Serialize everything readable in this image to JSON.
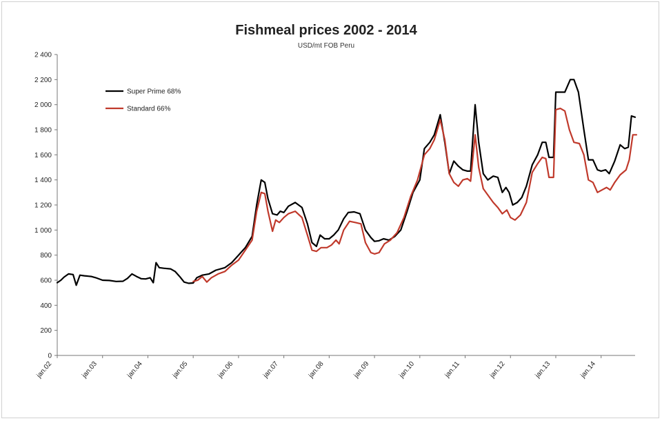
{
  "chart_data": {
    "type": "line",
    "title": "Fishmeal prices 2002 - 2014",
    "subtitle": "USD/mt FOB Peru",
    "xlabel": "",
    "ylabel": "",
    "ylim": [
      0,
      2400
    ],
    "yticks": [
      "0",
      "200",
      "400",
      "600",
      "800",
      "1 000",
      "1 200",
      "1 400",
      "1 600",
      "1 800",
      "2 000",
      "2 200",
      "2 400"
    ],
    "xticks": [
      "jan.02",
      "jan.03",
      "jan.04",
      "jan.05",
      "jan.06",
      "jan.07",
      "jan.08",
      "jan.09",
      "jan.10",
      "jan.11",
      "jan.12",
      "jan.13",
      "jan.14"
    ],
    "grid": false,
    "legend_position": "top-left",
    "series": [
      {
        "name": "Super Prime 68%",
        "color": "#000000",
        "points": [
          [
            2002.0,
            580
          ],
          [
            2002.08,
            600
          ],
          [
            2002.15,
            625
          ],
          [
            2002.25,
            650
          ],
          [
            2002.35,
            645
          ],
          [
            2002.42,
            560
          ],
          [
            2002.5,
            640
          ],
          [
            2002.6,
            635
          ],
          [
            2002.75,
            630
          ],
          [
            2002.85,
            620
          ],
          [
            2003.0,
            600
          ],
          [
            2003.15,
            598
          ],
          [
            2003.3,
            590
          ],
          [
            2003.45,
            592
          ],
          [
            2003.55,
            615
          ],
          [
            2003.65,
            650
          ],
          [
            2003.75,
            630
          ],
          [
            2003.85,
            612
          ],
          [
            2003.95,
            610
          ],
          [
            2004.05,
            620
          ],
          [
            2004.12,
            580
          ],
          [
            2004.18,
            740
          ],
          [
            2004.25,
            700
          ],
          [
            2004.35,
            695
          ],
          [
            2004.5,
            690
          ],
          [
            2004.6,
            670
          ],
          [
            2004.7,
            630
          ],
          [
            2004.8,
            585
          ],
          [
            2004.9,
            575
          ],
          [
            2005.0,
            578
          ],
          [
            2005.08,
            620
          ],
          [
            2005.2,
            640
          ],
          [
            2005.35,
            650
          ],
          [
            2005.5,
            680
          ],
          [
            2005.7,
            700
          ],
          [
            2005.85,
            740
          ],
          [
            2006.0,
            800
          ],
          [
            2006.15,
            860
          ],
          [
            2006.3,
            950
          ],
          [
            2006.4,
            1200
          ],
          [
            2006.5,
            1400
          ],
          [
            2006.58,
            1380
          ],
          [
            2006.65,
            1250
          ],
          [
            2006.75,
            1130
          ],
          [
            2006.85,
            1120
          ],
          [
            2006.92,
            1150
          ],
          [
            2007.0,
            1140
          ],
          [
            2007.1,
            1190
          ],
          [
            2007.25,
            1220
          ],
          [
            2007.4,
            1180
          ],
          [
            2007.52,
            1050
          ],
          [
            2007.62,
            900
          ],
          [
            2007.72,
            870
          ],
          [
            2007.8,
            960
          ],
          [
            2007.9,
            930
          ],
          [
            2008.0,
            930
          ],
          [
            2008.1,
            960
          ],
          [
            2008.2,
            1000
          ],
          [
            2008.32,
            1090
          ],
          [
            2008.42,
            1140
          ],
          [
            2008.55,
            1145
          ],
          [
            2008.68,
            1130
          ],
          [
            2008.8,
            1000
          ],
          [
            2008.92,
            940
          ],
          [
            2009.0,
            910
          ],
          [
            2009.1,
            915
          ],
          [
            2009.2,
            930
          ],
          [
            2009.32,
            920
          ],
          [
            2009.45,
            950
          ],
          [
            2009.58,
            1000
          ],
          [
            2009.72,
            1150
          ],
          [
            2009.85,
            1300
          ],
          [
            2010.0,
            1400
          ],
          [
            2010.1,
            1650
          ],
          [
            2010.22,
            1700
          ],
          [
            2010.32,
            1760
          ],
          [
            2010.45,
            1920
          ],
          [
            2010.55,
            1700
          ],
          [
            2010.65,
            1450
          ],
          [
            2010.75,
            1550
          ],
          [
            2010.85,
            1510
          ],
          [
            2010.95,
            1480
          ],
          [
            2011.05,
            1470
          ],
          [
            2011.12,
            1470
          ],
          [
            2011.22,
            2000
          ],
          [
            2011.3,
            1700
          ],
          [
            2011.4,
            1450
          ],
          [
            2011.5,
            1400
          ],
          [
            2011.62,
            1430
          ],
          [
            2011.72,
            1420
          ],
          [
            2011.82,
            1300
          ],
          [
            2011.9,
            1340
          ],
          [
            2011.97,
            1300
          ],
          [
            2012.05,
            1200
          ],
          [
            2012.15,
            1220
          ],
          [
            2012.25,
            1260
          ],
          [
            2012.35,
            1350
          ],
          [
            2012.48,
            1520
          ],
          [
            2012.6,
            1600
          ],
          [
            2012.7,
            1700
          ],
          [
            2012.78,
            1700
          ],
          [
            2012.85,
            1580
          ],
          [
            2012.95,
            1580
          ],
          [
            2013.0,
            2100
          ],
          [
            2013.1,
            2100
          ],
          [
            2013.2,
            2100
          ],
          [
            2013.32,
            2200
          ],
          [
            2013.4,
            2200
          ],
          [
            2013.5,
            2100
          ],
          [
            2013.62,
            1800
          ],
          [
            2013.72,
            1560
          ],
          [
            2013.82,
            1560
          ],
          [
            2013.92,
            1480
          ],
          [
            2014.0,
            1470
          ],
          [
            2014.1,
            1480
          ],
          [
            2014.18,
            1450
          ],
          [
            2014.3,
            1550
          ],
          [
            2014.42,
            1680
          ],
          [
            2014.52,
            1650
          ],
          [
            2014.6,
            1660
          ],
          [
            2014.67,
            1910
          ],
          [
            2014.75,
            1900
          ]
        ]
      },
      {
        "name": "Standard 66%",
        "color": "#c0392b",
        "points": [
          [
            2005.0,
            590
          ],
          [
            2005.1,
            600
          ],
          [
            2005.2,
            630
          ],
          [
            2005.3,
            585
          ],
          [
            2005.4,
            620
          ],
          [
            2005.55,
            650
          ],
          [
            2005.7,
            670
          ],
          [
            2005.85,
            720
          ],
          [
            2006.0,
            760
          ],
          [
            2006.15,
            840
          ],
          [
            2006.3,
            920
          ],
          [
            2006.4,
            1150
          ],
          [
            2006.5,
            1300
          ],
          [
            2006.58,
            1290
          ],
          [
            2006.65,
            1150
          ],
          [
            2006.75,
            990
          ],
          [
            2006.82,
            1080
          ],
          [
            2006.9,
            1060
          ],
          [
            2007.0,
            1100
          ],
          [
            2007.1,
            1130
          ],
          [
            2007.25,
            1150
          ],
          [
            2007.4,
            1100
          ],
          [
            2007.52,
            960
          ],
          [
            2007.62,
            840
          ],
          [
            2007.72,
            830
          ],
          [
            2007.82,
            860
          ],
          [
            2007.95,
            860
          ],
          [
            2008.05,
            880
          ],
          [
            2008.15,
            920
          ],
          [
            2008.22,
            890
          ],
          [
            2008.32,
            1000
          ],
          [
            2008.45,
            1070
          ],
          [
            2008.58,
            1060
          ],
          [
            2008.7,
            1050
          ],
          [
            2008.8,
            900
          ],
          [
            2008.92,
            820
          ],
          [
            2009.0,
            810
          ],
          [
            2009.1,
            820
          ],
          [
            2009.22,
            890
          ],
          [
            2009.35,
            920
          ],
          [
            2009.5,
            980
          ],
          [
            2009.65,
            1100
          ],
          [
            2009.8,
            1270
          ],
          [
            2009.95,
            1400
          ],
          [
            2010.1,
            1600
          ],
          [
            2010.22,
            1650
          ],
          [
            2010.32,
            1720
          ],
          [
            2010.45,
            1880
          ],
          [
            2010.55,
            1720
          ],
          [
            2010.65,
            1450
          ],
          [
            2010.75,
            1380
          ],
          [
            2010.85,
            1350
          ],
          [
            2010.95,
            1400
          ],
          [
            2011.05,
            1410
          ],
          [
            2011.12,
            1390
          ],
          [
            2011.22,
            1760
          ],
          [
            2011.3,
            1500
          ],
          [
            2011.4,
            1330
          ],
          [
            2011.5,
            1280
          ],
          [
            2011.62,
            1220
          ],
          [
            2011.72,
            1180
          ],
          [
            2011.82,
            1130
          ],
          [
            2011.92,
            1160
          ],
          [
            2012.0,
            1100
          ],
          [
            2012.1,
            1080
          ],
          [
            2012.22,
            1120
          ],
          [
            2012.35,
            1220
          ],
          [
            2012.48,
            1460
          ],
          [
            2012.6,
            1530
          ],
          [
            2012.7,
            1580
          ],
          [
            2012.78,
            1570
          ],
          [
            2012.85,
            1420
          ],
          [
            2012.95,
            1420
          ],
          [
            2013.0,
            1960
          ],
          [
            2013.1,
            1970
          ],
          [
            2013.2,
            1950
          ],
          [
            2013.3,
            1800
          ],
          [
            2013.4,
            1700
          ],
          [
            2013.52,
            1690
          ],
          [
            2013.62,
            1600
          ],
          [
            2013.72,
            1400
          ],
          [
            2013.82,
            1380
          ],
          [
            2013.92,
            1300
          ],
          [
            2014.02,
            1320
          ],
          [
            2014.12,
            1340
          ],
          [
            2014.2,
            1320
          ],
          [
            2014.3,
            1380
          ],
          [
            2014.42,
            1440
          ],
          [
            2014.55,
            1480
          ],
          [
            2014.62,
            1560
          ],
          [
            2014.7,
            1760
          ],
          [
            2014.78,
            1760
          ]
        ]
      }
    ]
  }
}
